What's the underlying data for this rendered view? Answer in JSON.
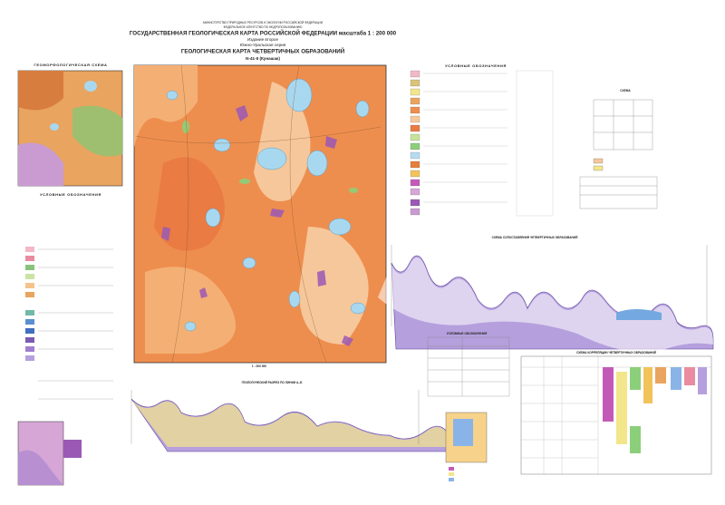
{
  "header": {
    "ministry": "МИНИСТЕРСТВО ПРИРОДНЫХ РЕСУРСОВ И ЭКОЛОГИИ РОССИЙСКОЙ ФЕДЕРАЦИИ",
    "agency": "ФЕДЕРАЛЬНОЕ АГЕНТСТВО ПО НЕДРОПОЛЬЗОВАНИЮ",
    "title": "ГОСУДАРСТВЕННАЯ ГЕОЛОГИЧЕСКАЯ КАРТА РОССИЙСКОЙ ФЕДЕРАЦИИ масштаба 1 : 200 000",
    "edition": "Издание второе",
    "series": "Южно-Уральская серия",
    "map_title": "ГЕОЛОГИЧЕСКАЯ КАРТА ЧЕТВЕРТИЧНЫХ ОБРАЗОВАНИЙ",
    "sheet": "N-41-II (Кунашак)"
  },
  "panels": {
    "geomorph": "ГЕОМОРФОЛОГИЧЕСКАЯ СХЕМА",
    "geomorph_legend": "УСЛОВНЫЕ ОБОЗНАЧЕНИЯ",
    "legend": "УСЛОВНЫЕ ОБОЗНАЧЕНИЯ",
    "scale": "1 : 200 000",
    "section_ab": "ГЕОЛОГИЧЕСКИЙ РАЗРЕЗ ПО ЛИНИИ А–Б",
    "section_long": "СХЕМА СОПОСТАВЛЕНИЯ ЧЕТВЕРТИЧНЫХ ОБРАЗОВАНИЙ",
    "correlation": "СХЕМА КОРРЕЛЯЦИИ ЧЕТВЕРТИЧНЫХ ОБРАЗОВАНИЙ",
    "small_legend": "УСЛОВНЫЕ ОБОЗНАЧЕНИЯ",
    "index": "СХЕМА"
  }
}
